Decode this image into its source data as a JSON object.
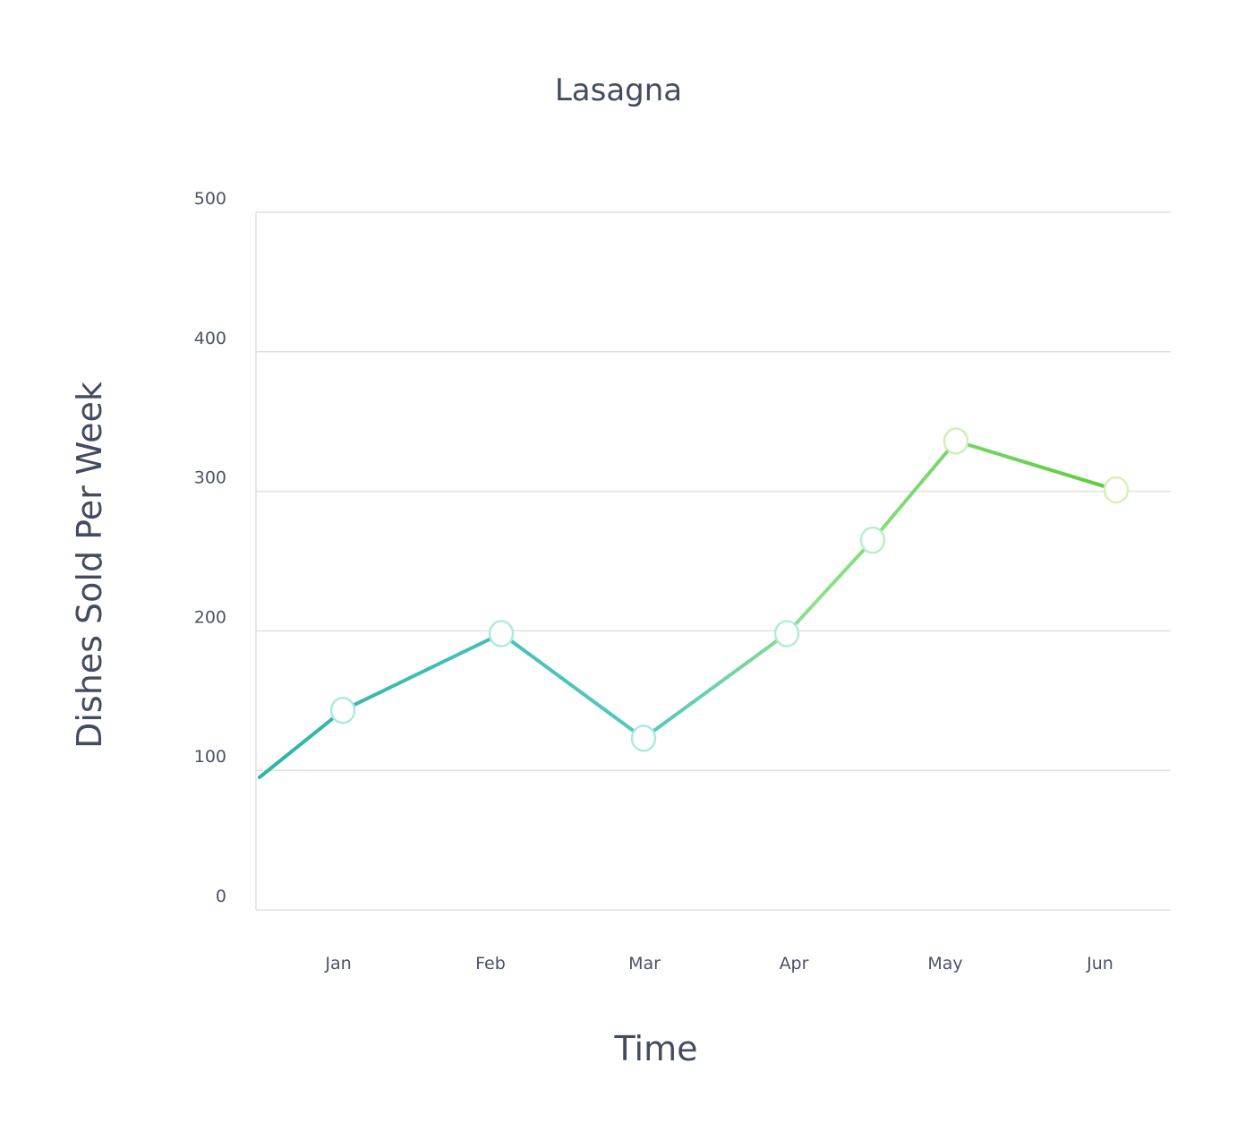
{
  "chart_data": {
    "type": "line",
    "title": "Lasagna",
    "xlabel": "Time",
    "ylabel": "Dishes Sold Per Week",
    "categories": [
      "Jan",
      "Feb",
      "Mar",
      "Apr",
      "May",
      "Jun"
    ],
    "y_ticks": [
      "0",
      "100",
      "200",
      "300",
      "400",
      "500"
    ],
    "ylim": [
      0,
      500
    ],
    "grid": true,
    "series": [
      {
        "x": [
          0.45,
          1.0,
          2.05,
          3.0,
          4.0,
          4.5,
          5.05,
          6.05
        ],
        "y": [
          95,
          143,
          198,
          123,
          198,
          265,
          336,
          301
        ],
        "markers": [
          1,
          2,
          3,
          4,
          5,
          6,
          7
        ]
      }
    ],
    "colors": {
      "line_start": "#2fb3a6",
      "line_middle": "#8ee08a",
      "line_end": "#5acb3c",
      "grid": "#e0e0e0",
      "text": "#434c5e"
    }
  }
}
